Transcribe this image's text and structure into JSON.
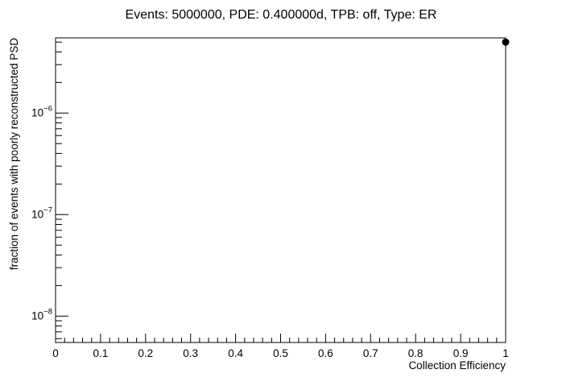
{
  "chart_data": {
    "type": "scatter",
    "title": "Events: 5000000, PDE: 0.400000d, TPB: off, Type: ER",
    "xlabel": "Collection Efficiency",
    "ylabel": "fraction of events with poorly reconstructed PSD",
    "xlim": [
      0,
      1
    ],
    "ylim": [
      5.5e-09,
      5.5e-06
    ],
    "yscale": "log",
    "x_ticks": [
      {
        "value": 0,
        "label": "0"
      },
      {
        "value": 0.1,
        "label": "0.1"
      },
      {
        "value": 0.2,
        "label": "0.2"
      },
      {
        "value": 0.3,
        "label": "0.3"
      },
      {
        "value": 0.4,
        "label": "0.4"
      },
      {
        "value": 0.5,
        "label": "0.5"
      },
      {
        "value": 0.6,
        "label": "0.6"
      },
      {
        "value": 0.7,
        "label": "0.7"
      },
      {
        "value": 0.8,
        "label": "0.8"
      },
      {
        "value": 0.9,
        "label": "0.9"
      },
      {
        "value": 1,
        "label": "1"
      }
    ],
    "y_ticks": [
      {
        "value": 1e-08,
        "base": "10",
        "exp": "−8"
      },
      {
        "value": 1e-07,
        "base": "10",
        "exp": "−7"
      },
      {
        "value": 1e-06,
        "base": "10",
        "exp": "−6"
      }
    ],
    "series": [
      {
        "points": [
          {
            "x": 1,
            "y": 5e-06
          }
        ],
        "color": "#000000",
        "marker": "circle"
      }
    ],
    "grid": false,
    "legend": "none"
  }
}
